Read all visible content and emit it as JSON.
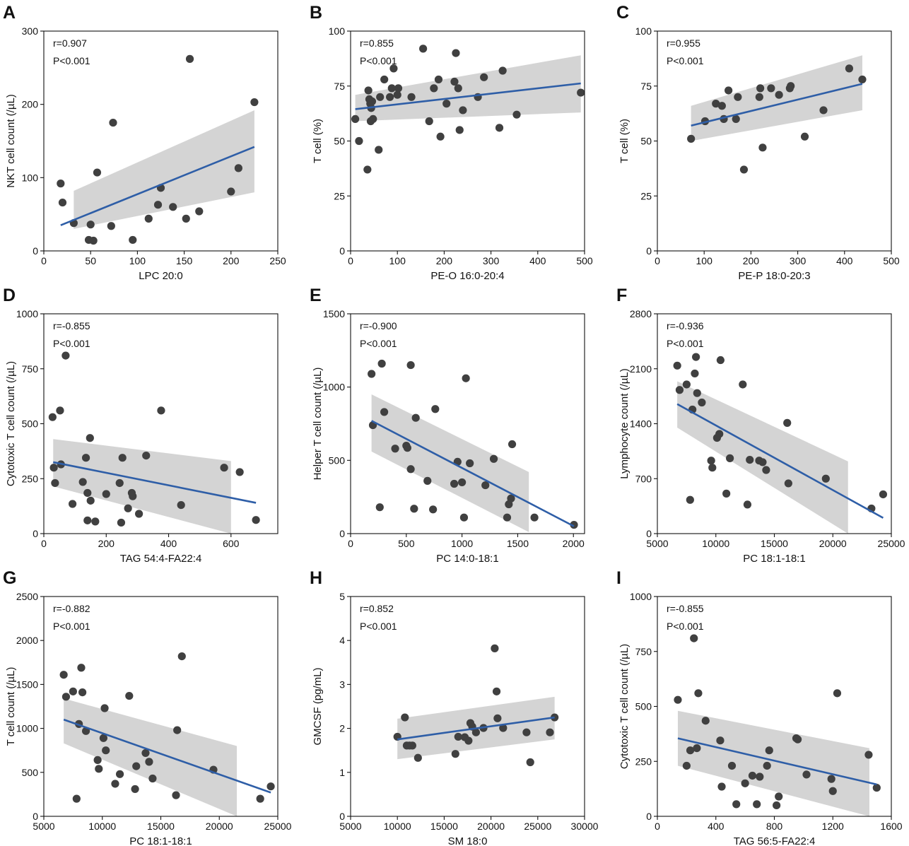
{
  "style": {
    "point_color": "#404040",
    "line_color": "#2e5ea7",
    "band_color": "#d4d4d4",
    "axis_color": "#111111"
  },
  "chart_data": [
    {
      "panel": "A",
      "type": "scatter",
      "xlabel": "LPC 20:0",
      "ylabel": "NKT cell count (/µL)",
      "xlim": [
        0,
        250
      ],
      "ylim": [
        0,
        300
      ],
      "xticks": [
        0,
        50,
        100,
        150,
        200,
        250
      ],
      "yticks": [
        0,
        100,
        200,
        300
      ],
      "stat_r": "r=0.907",
      "stat_p": "P<0.001",
      "x": [
        18,
        20,
        32,
        48,
        50,
        53,
        57,
        72,
        74,
        95,
        112,
        122,
        125,
        138,
        152,
        156,
        166,
        200,
        208,
        225
      ],
      "y": [
        92,
        66,
        38,
        15,
        36,
        14,
        107,
        34,
        175,
        15,
        44,
        63,
        86,
        60,
        44,
        262,
        54,
        81,
        113,
        203
      ],
      "fit": {
        "x": [
          18,
          225
        ],
        "y": [
          35,
          142
        ]
      },
      "band": {
        "x": [
          32,
          225
        ],
        "upper": [
          82,
          192
        ],
        "lower": [
          30,
          80
        ]
      }
    },
    {
      "panel": "B",
      "type": "scatter",
      "xlabel": "PE-O 16:0-20:4",
      "ylabel": "T cell (%)",
      "xlim": [
        0,
        500
      ],
      "ylim": [
        0,
        100
      ],
      "xticks": [
        0,
        100,
        200,
        300,
        400,
        500
      ],
      "yticks": [
        0,
        25,
        50,
        75,
        100
      ],
      "stat_r": "r=0.855",
      "stat_p": "P<0.001",
      "x": [
        10,
        18,
        36,
        38,
        40,
        42,
        43,
        44,
        46,
        48,
        60,
        63,
        72,
        84,
        88,
        92,
        100,
        102,
        130,
        155,
        168,
        178,
        188,
        192,
        205,
        222,
        225,
        230,
        233,
        240,
        272,
        285,
        318,
        325,
        355,
        492
      ],
      "y": [
        60,
        50,
        37,
        73,
        69,
        67,
        59,
        65,
        68,
        60,
        46,
        70,
        78,
        70,
        74,
        83,
        71,
        74,
        70,
        92,
        59,
        74,
        78,
        52,
        67,
        77,
        90,
        74,
        55,
        64,
        70,
        79,
        56,
        82,
        62,
        72
      ],
      "fit": {
        "x": [
          10,
          492
        ],
        "y": [
          64.5,
          76.2
        ]
      },
      "band": {
        "x": [
          10,
          492
        ],
        "upper": [
          71,
          89
        ],
        "lower": [
          59,
          63
        ]
      }
    },
    {
      "panel": "C",
      "type": "scatter",
      "xlabel": "PE-P 18:0-20:3",
      "ylabel": "T cell (%)",
      "xlim": [
        0,
        500
      ],
      "ylim": [
        0,
        100
      ],
      "xticks": [
        0,
        100,
        200,
        300,
        400,
        500
      ],
      "yticks": [
        0,
        25,
        50,
        75,
        100
      ],
      "stat_r": "r=0.955",
      "stat_p": "P<0.001",
      "x": [
        72,
        102,
        125,
        138,
        142,
        152,
        168,
        172,
        185,
        218,
        220,
        225,
        243,
        260,
        283,
        285,
        315,
        355,
        410,
        438
      ],
      "y": [
        51,
        59,
        67,
        66,
        60,
        73,
        60,
        70,
        37,
        70,
        74,
        47,
        74,
        71,
        74,
        75,
        52,
        64,
        83,
        78
      ],
      "fit": {
        "x": [
          72,
          438
        ],
        "y": [
          57,
          76
        ]
      },
      "band": {
        "x": [
          72,
          438
        ],
        "upper": [
          66,
          89
        ],
        "lower": [
          50,
          64
        ]
      }
    },
    {
      "panel": "D",
      "type": "scatter",
      "xlabel": "TAG 54:4-FA22:4",
      "ylabel": "Cytotoxic T cell count (/µL)",
      "xlim": [
        0,
        750
      ],
      "ylim": [
        0,
        1000
      ],
      "xticks": [
        0,
        200,
        400,
        600
      ],
      "yticks": [
        0,
        250,
        500,
        750,
        1000
      ],
      "stat_r": "r=-0.855",
      "stat_p": "P<0.001",
      "x": [
        28,
        32,
        36,
        52,
        55,
        70,
        92,
        125,
        135,
        140,
        140,
        148,
        150,
        165,
        200,
        243,
        248,
        252,
        270,
        282,
        285,
        305,
        328,
        376,
        440,
        578,
        628,
        680
      ],
      "y": [
        530,
        300,
        230,
        560,
        315,
        810,
        135,
        235,
        345,
        60,
        185,
        435,
        150,
        55,
        180,
        230,
        50,
        345,
        115,
        185,
        170,
        90,
        355,
        560,
        130,
        300,
        280,
        62
      ],
      "fit": {
        "x": [
          30,
          680
        ],
        "y": [
          325,
          140
        ]
      },
      "band": {
        "x": [
          30,
          600
        ],
        "upper": [
          430,
          330
        ],
        "lower": [
          215,
          0
        ]
      }
    },
    {
      "panel": "E",
      "type": "scatter",
      "xlabel": "PC 14:0-18:1",
      "ylabel": "Helper T cell count (/µL)",
      "xlim": [
        0,
        2100
      ],
      "ylim": [
        0,
        1500
      ],
      "xticks": [
        0,
        500,
        1000,
        1500,
        2000
      ],
      "yticks": [
        0,
        500,
        1000,
        1500
      ],
      "stat_r": "r=-0.900",
      "stat_p": "P<0.001",
      "x": [
        188,
        200,
        262,
        280,
        302,
        400,
        500,
        510,
        540,
        540,
        570,
        585,
        690,
        740,
        760,
        930,
        960,
        1000,
        1018,
        1035,
        1070,
        1210,
        1285,
        1405,
        1420,
        1440,
        1450,
        1650,
        2005
      ],
      "y": [
        1090,
        740,
        180,
        1160,
        830,
        580,
        600,
        585,
        1150,
        440,
        170,
        790,
        360,
        165,
        850,
        340,
        490,
        350,
        110,
        1060,
        480,
        330,
        510,
        110,
        200,
        240,
        610,
        110,
        60
      ],
      "fit": {
        "x": [
          188,
          2005
        ],
        "y": [
          770,
          50
        ]
      },
      "band": {
        "x": [
          188,
          1600
        ],
        "upper": [
          950,
          420
        ],
        "lower": [
          560,
          10
        ]
      }
    },
    {
      "panel": "F",
      "type": "scatter",
      "xlabel": "PC 18:1-18:1",
      "ylabel": "Lymphocyte count (/µL)",
      "xlim": [
        5000,
        25000
      ],
      "ylim": [
        0,
        2800
      ],
      "xticks": [
        5000,
        10000,
        15000,
        20000,
        25000
      ],
      "yticks": [
        0,
        700,
        1400,
        2100,
        2800
      ],
      "stat_r": "r=-0.936",
      "stat_p": "P<0.001",
      "x": [
        6700,
        6900,
        7500,
        7800,
        8000,
        8200,
        8300,
        8400,
        8800,
        9600,
        9700,
        10100,
        10300,
        10400,
        10900,
        11200,
        12300,
        12700,
        12900,
        13700,
        14000,
        14300,
        16100,
        16200,
        19400,
        23300,
        24300
      ],
      "y": [
        2140,
        1830,
        1900,
        430,
        1580,
        2040,
        2250,
        1790,
        1670,
        930,
        840,
        1220,
        1270,
        2210,
        510,
        960,
        1900,
        370,
        940,
        930,
        910,
        810,
        1410,
        640,
        700,
        320,
        500
      ],
      "fit": {
        "x": [
          6700,
          24300
        ],
        "y": [
          1650,
          200
        ]
      },
      "band": {
        "x": [
          6700,
          21300
        ],
        "upper": [
          1940,
          920
        ],
        "lower": [
          1350,
          0
        ]
      }
    },
    {
      "panel": "G",
      "type": "scatter",
      "xlabel": "PC 18:1-18:1",
      "ylabel": "T cell count (/µL)",
      "xlim": [
        5000,
        25000
      ],
      "ylim": [
        0,
        2500
      ],
      "xticks": [
        5000,
        10000,
        15000,
        20000,
        25000
      ],
      "yticks": [
        0,
        500,
        1000,
        1500,
        2000,
        2500
      ],
      "stat_r": "r=-0.882",
      "stat_p": "P<0.001",
      "x": [
        6700,
        6900,
        7500,
        7800,
        8000,
        8200,
        8300,
        8600,
        9600,
        9700,
        10100,
        10200,
        10300,
        11100,
        11500,
        12300,
        12800,
        12900,
        13700,
        14000,
        14300,
        16300,
        16400,
        16800,
        19500,
        23500,
        24400
      ],
      "y": [
        1610,
        1360,
        1420,
        200,
        1050,
        1690,
        1410,
        970,
        640,
        540,
        890,
        1230,
        750,
        370,
        480,
        1370,
        310,
        570,
        720,
        620,
        430,
        240,
        980,
        1820,
        530,
        200,
        340
      ],
      "fit": {
        "x": [
          6700,
          24400
        ],
        "y": [
          1100,
          270
        ]
      },
      "band": {
        "x": [
          6700,
          21500
        ],
        "upper": [
          1340,
          800
        ],
        "lower": [
          830,
          0
        ]
      }
    },
    {
      "panel": "H",
      "type": "scatter",
      "xlabel": "SM 18:0",
      "ylabel": "GMCSF (pg/mL)",
      "xlim": [
        5000,
        30000
      ],
      "ylim": [
        0,
        5
      ],
      "xticks": [
        5000,
        10000,
        15000,
        20000,
        25000,
        30000
      ],
      "yticks": [
        0,
        1,
        2,
        3,
        4,
        5
      ],
      "stat_r": "r=0.852",
      "stat_p": "P<0.001",
      "x": [
        10000,
        10800,
        11000,
        11300,
        11600,
        12200,
        16200,
        16500,
        17200,
        17600,
        17800,
        18000,
        18400,
        19200,
        20400,
        20600,
        20700,
        21300,
        23800,
        24200,
        26300,
        26800
      ],
      "y": [
        1.81,
        2.25,
        1.61,
        1.61,
        1.61,
        1.33,
        1.42,
        1.81,
        1.8,
        1.72,
        2.12,
        2.04,
        1.91,
        2.01,
        3.82,
        2.84,
        2.23,
        2.01,
        1.91,
        1.23,
        1.91,
        2.25
      ],
      "fit": {
        "x": [
          10000,
          26800
        ],
        "y": [
          1.75,
          2.25
        ]
      },
      "band": {
        "x": [
          10000,
          26800
        ],
        "upper": [
          2.22,
          2.72
        ],
        "lower": [
          1.3,
          1.75
        ]
      }
    },
    {
      "panel": "I",
      "type": "scatter",
      "xlabel": "TAG 56:5-FA22:4",
      "ylabel": "Cytotoxic T cell count (/µL)",
      "xlim": [
        0,
        1600
      ],
      "ylim": [
        0,
        1000
      ],
      "xticks": [
        0,
        400,
        800,
        1200,
        1600
      ],
      "yticks": [
        0,
        250,
        500,
        750,
        1000
      ],
      "stat_r": "r=-0.855",
      "stat_p": "P<0.001",
      "x": [
        140,
        200,
        225,
        250,
        270,
        280,
        330,
        430,
        440,
        510,
        540,
        600,
        650,
        680,
        700,
        750,
        765,
        815,
        830,
        950,
        960,
        1020,
        1190,
        1200,
        1230,
        1445,
        1500
      ],
      "y": [
        530,
        230,
        300,
        810,
        310,
        560,
        435,
        345,
        135,
        230,
        55,
        150,
        185,
        55,
        180,
        230,
        300,
        50,
        90,
        355,
        350,
        190,
        170,
        115,
        560,
        280,
        130
      ],
      "fit": {
        "x": [
          140,
          1500
        ],
        "y": [
          355,
          145
        ]
      },
      "band": {
        "x": [
          140,
          1450
        ],
        "upper": [
          480,
          310
        ],
        "lower": [
          230,
          0
        ]
      }
    }
  ]
}
